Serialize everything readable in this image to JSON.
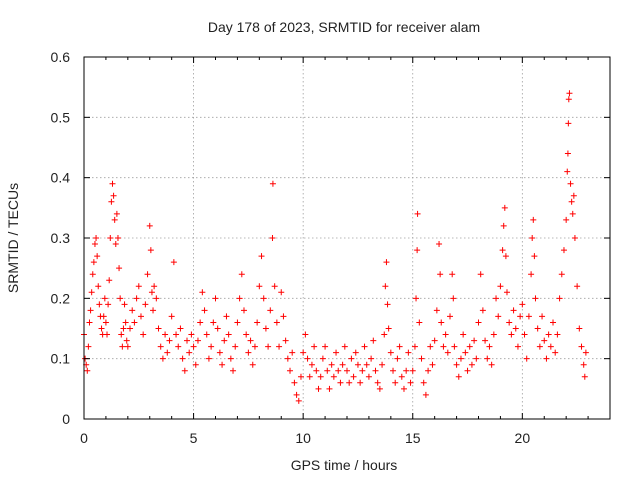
{
  "chart_data": {
    "type": "scatter",
    "title": "Day 178 of 2023, SRMTID for receiver alam",
    "xlabel": "GPS time / hours",
    "ylabel": "SRMTID / TECUs",
    "xlim": [
      0,
      24
    ],
    "ylim": [
      0,
      0.6
    ],
    "xticks": [
      0,
      5,
      10,
      15,
      20
    ],
    "xtick_labels": [
      "0",
      "5",
      "10",
      "15",
      "20"
    ],
    "yticks": [
      0,
      0.1,
      0.2,
      0.3,
      0.4,
      0.5,
      0.6
    ],
    "ytick_labels": [
      "0",
      "0.1",
      "0.2",
      "0.3",
      "0.4",
      "0.5",
      "0.6"
    ],
    "grid": true,
    "marker": "plus",
    "color": "#ff0000",
    "series": [
      {
        "name": "SRMTID",
        "points": [
          [
            0.0,
            0.14
          ],
          [
            0.05,
            0.1
          ],
          [
            0.1,
            0.09
          ],
          [
            0.15,
            0.08
          ],
          [
            0.2,
            0.12
          ],
          [
            0.25,
            0.16
          ],
          [
            0.3,
            0.18
          ],
          [
            0.35,
            0.21
          ],
          [
            0.4,
            0.24
          ],
          [
            0.45,
            0.26
          ],
          [
            0.5,
            0.29
          ],
          [
            0.55,
            0.3
          ],
          [
            0.6,
            0.27
          ],
          [
            0.65,
            0.22
          ],
          [
            0.7,
            0.19
          ],
          [
            0.75,
            0.17
          ],
          [
            0.8,
            0.15
          ],
          [
            0.85,
            0.14
          ],
          [
            0.9,
            0.17
          ],
          [
            0.95,
            0.2
          ],
          [
            1.0,
            0.16
          ],
          [
            1.05,
            0.14
          ],
          [
            1.1,
            0.19
          ],
          [
            1.15,
            0.23
          ],
          [
            1.2,
            0.3
          ],
          [
            1.25,
            0.36
          ],
          [
            1.3,
            0.39
          ],
          [
            1.35,
            0.37
          ],
          [
            1.4,
            0.33
          ],
          [
            1.45,
            0.29
          ],
          [
            1.5,
            0.34
          ],
          [
            1.55,
            0.3
          ],
          [
            1.6,
            0.25
          ],
          [
            1.65,
            0.2
          ],
          [
            1.7,
            0.14
          ],
          [
            1.75,
            0.12
          ],
          [
            1.8,
            0.15
          ],
          [
            1.85,
            0.19
          ],
          [
            1.9,
            0.16
          ],
          [
            1.95,
            0.13
          ],
          [
            2.0,
            0.12
          ],
          [
            2.1,
            0.15
          ],
          [
            2.2,
            0.18
          ],
          [
            2.3,
            0.16
          ],
          [
            2.4,
            0.2
          ],
          [
            2.5,
            0.22
          ],
          [
            2.6,
            0.17
          ],
          [
            2.7,
            0.14
          ],
          [
            2.8,
            0.19
          ],
          [
            2.9,
            0.24
          ],
          [
            3.0,
            0.32
          ],
          [
            3.05,
            0.28
          ],
          [
            3.1,
            0.21
          ],
          [
            3.15,
            0.18
          ],
          [
            3.2,
            0.22
          ],
          [
            3.3,
            0.2
          ],
          [
            3.4,
            0.15
          ],
          [
            3.5,
            0.12
          ],
          [
            3.6,
            0.1
          ],
          [
            3.7,
            0.14
          ],
          [
            3.8,
            0.11
          ],
          [
            3.9,
            0.13
          ],
          [
            4.0,
            0.17
          ],
          [
            4.1,
            0.26
          ],
          [
            4.2,
            0.14
          ],
          [
            4.3,
            0.12
          ],
          [
            4.4,
            0.15
          ],
          [
            4.5,
            0.1
          ],
          [
            4.6,
            0.08
          ],
          [
            4.7,
            0.13
          ],
          [
            4.8,
            0.11
          ],
          [
            4.9,
            0.14
          ],
          [
            5.0,
            0.12
          ],
          [
            5.1,
            0.09
          ],
          [
            5.2,
            0.13
          ],
          [
            5.3,
            0.16
          ],
          [
            5.4,
            0.21
          ],
          [
            5.5,
            0.18
          ],
          [
            5.6,
            0.14
          ],
          [
            5.7,
            0.1
          ],
          [
            5.8,
            0.12
          ],
          [
            5.9,
            0.16
          ],
          [
            6.0,
            0.2
          ],
          [
            6.1,
            0.15
          ],
          [
            6.2,
            0.11
          ],
          [
            6.3,
            0.09
          ],
          [
            6.4,
            0.13
          ],
          [
            6.5,
            0.17
          ],
          [
            6.6,
            0.14
          ],
          [
            6.7,
            0.1
          ],
          [
            6.8,
            0.08
          ],
          [
            6.9,
            0.12
          ],
          [
            7.0,
            0.16
          ],
          [
            7.1,
            0.2
          ],
          [
            7.2,
            0.24
          ],
          [
            7.3,
            0.18
          ],
          [
            7.4,
            0.14
          ],
          [
            7.5,
            0.11
          ],
          [
            7.6,
            0.13
          ],
          [
            7.7,
            0.09
          ],
          [
            7.8,
            0.12
          ],
          [
            7.9,
            0.16
          ],
          [
            8.0,
            0.22
          ],
          [
            8.1,
            0.27
          ],
          [
            8.2,
            0.2
          ],
          [
            8.3,
            0.15
          ],
          [
            8.4,
            0.12
          ],
          [
            8.5,
            0.18
          ],
          [
            8.6,
            0.3
          ],
          [
            8.62,
            0.39
          ],
          [
            8.7,
            0.22
          ],
          [
            8.8,
            0.16
          ],
          [
            8.9,
            0.12
          ],
          [
            9.0,
            0.21
          ],
          [
            9.1,
            0.17
          ],
          [
            9.2,
            0.13
          ],
          [
            9.3,
            0.1
          ],
          [
            9.4,
            0.08
          ],
          [
            9.5,
            0.11
          ],
          [
            9.6,
            0.06
          ],
          [
            9.7,
            0.04
          ],
          [
            9.8,
            0.03
          ],
          [
            9.9,
            0.07
          ],
          [
            10.0,
            0.11
          ],
          [
            10.1,
            0.14
          ],
          [
            10.2,
            0.1
          ],
          [
            10.3,
            0.07
          ],
          [
            10.4,
            0.09
          ],
          [
            10.5,
            0.12
          ],
          [
            10.6,
            0.08
          ],
          [
            10.7,
            0.05
          ],
          [
            10.8,
            0.07
          ],
          [
            10.9,
            0.1
          ],
          [
            11.0,
            0.12
          ],
          [
            11.1,
            0.08
          ],
          [
            11.2,
            0.05
          ],
          [
            11.3,
            0.09
          ],
          [
            11.4,
            0.07
          ],
          [
            11.5,
            0.11
          ],
          [
            11.6,
            0.08
          ],
          [
            11.7,
            0.06
          ],
          [
            11.8,
            0.09
          ],
          [
            11.9,
            0.12
          ],
          [
            12.0,
            0.08
          ],
          [
            12.1,
            0.06
          ],
          [
            12.2,
            0.1
          ],
          [
            12.3,
            0.07
          ],
          [
            12.4,
            0.11
          ],
          [
            12.5,
            0.09
          ],
          [
            12.6,
            0.06
          ],
          [
            12.7,
            0.08
          ],
          [
            12.8,
            0.12
          ],
          [
            12.9,
            0.09
          ],
          [
            13.0,
            0.07
          ],
          [
            13.1,
            0.1
          ],
          [
            13.2,
            0.13
          ],
          [
            13.3,
            0.08
          ],
          [
            13.4,
            0.06
          ],
          [
            13.5,
            0.05
          ],
          [
            13.6,
            0.09
          ],
          [
            13.7,
            0.14
          ],
          [
            13.75,
            0.22
          ],
          [
            13.8,
            0.26
          ],
          [
            13.85,
            0.19
          ],
          [
            13.9,
            0.15
          ],
          [
            14.0,
            0.11
          ],
          [
            14.1,
            0.08
          ],
          [
            14.2,
            0.06
          ],
          [
            14.3,
            0.1
          ],
          [
            14.4,
            0.12
          ],
          [
            14.5,
            0.07
          ],
          [
            14.6,
            0.05
          ],
          [
            14.7,
            0.08
          ],
          [
            14.8,
            0.11
          ],
          [
            14.9,
            0.06
          ],
          [
            15.0,
            0.08
          ],
          [
            15.1,
            0.12
          ],
          [
            15.15,
            0.2
          ],
          [
            15.2,
            0.28
          ],
          [
            15.22,
            0.34
          ],
          [
            15.3,
            0.16
          ],
          [
            15.4,
            0.1
          ],
          [
            15.5,
            0.06
          ],
          [
            15.6,
            0.04
          ],
          [
            15.7,
            0.08
          ],
          [
            15.8,
            0.12
          ],
          [
            15.9,
            0.09
          ],
          [
            16.0,
            0.13
          ],
          [
            16.1,
            0.18
          ],
          [
            16.2,
            0.29
          ],
          [
            16.25,
            0.24
          ],
          [
            16.3,
            0.16
          ],
          [
            16.4,
            0.12
          ],
          [
            16.5,
            0.14
          ],
          [
            16.6,
            0.11
          ],
          [
            16.7,
            0.17
          ],
          [
            16.8,
            0.24
          ],
          [
            16.85,
            0.2
          ],
          [
            16.9,
            0.12
          ],
          [
            17.0,
            0.09
          ],
          [
            17.1,
            0.07
          ],
          [
            17.2,
            0.1
          ],
          [
            17.3,
            0.14
          ],
          [
            17.4,
            0.11
          ],
          [
            17.5,
            0.08
          ],
          [
            17.6,
            0.12
          ],
          [
            17.7,
            0.09
          ],
          [
            17.8,
            0.13
          ],
          [
            17.9,
            0.1
          ],
          [
            18.0,
            0.16
          ],
          [
            18.1,
            0.24
          ],
          [
            18.2,
            0.18
          ],
          [
            18.3,
            0.13
          ],
          [
            18.4,
            0.1
          ],
          [
            18.5,
            0.12
          ],
          [
            18.6,
            0.09
          ],
          [
            18.7,
            0.14
          ],
          [
            18.8,
            0.2
          ],
          [
            18.9,
            0.17
          ],
          [
            19.0,
            0.22
          ],
          [
            19.1,
            0.28
          ],
          [
            19.15,
            0.32
          ],
          [
            19.2,
            0.35
          ],
          [
            19.25,
            0.27
          ],
          [
            19.3,
            0.21
          ],
          [
            19.4,
            0.16
          ],
          [
            19.5,
            0.14
          ],
          [
            19.6,
            0.18
          ],
          [
            19.7,
            0.15
          ],
          [
            19.8,
            0.12
          ],
          [
            19.9,
            0.17
          ],
          [
            20.0,
            0.19
          ],
          [
            20.1,
            0.14
          ],
          [
            20.2,
            0.1
          ],
          [
            20.3,
            0.17
          ],
          [
            20.4,
            0.24
          ],
          [
            20.45,
            0.3
          ],
          [
            20.5,
            0.33
          ],
          [
            20.55,
            0.27
          ],
          [
            20.6,
            0.2
          ],
          [
            20.7,
            0.15
          ],
          [
            20.8,
            0.12
          ],
          [
            20.9,
            0.17
          ],
          [
            21.0,
            0.13
          ],
          [
            21.1,
            0.1
          ],
          [
            21.2,
            0.14
          ],
          [
            21.3,
            0.12
          ],
          [
            21.4,
            0.16
          ],
          [
            21.5,
            0.11
          ],
          [
            21.6,
            0.14
          ],
          [
            21.7,
            0.2
          ],
          [
            21.8,
            0.24
          ],
          [
            21.9,
            0.28
          ],
          [
            22.0,
            0.33
          ],
          [
            22.05,
            0.41
          ],
          [
            22.08,
            0.44
          ],
          [
            22.1,
            0.49
          ],
          [
            22.12,
            0.53
          ],
          [
            22.15,
            0.54
          ],
          [
            22.2,
            0.39
          ],
          [
            22.25,
            0.36
          ],
          [
            22.3,
            0.34
          ],
          [
            22.35,
            0.37
          ],
          [
            22.4,
            0.3
          ],
          [
            22.5,
            0.22
          ],
          [
            22.6,
            0.15
          ],
          [
            22.7,
            0.12
          ],
          [
            22.8,
            0.09
          ],
          [
            22.85,
            0.07
          ],
          [
            22.9,
            0.11
          ]
        ]
      }
    ]
  }
}
